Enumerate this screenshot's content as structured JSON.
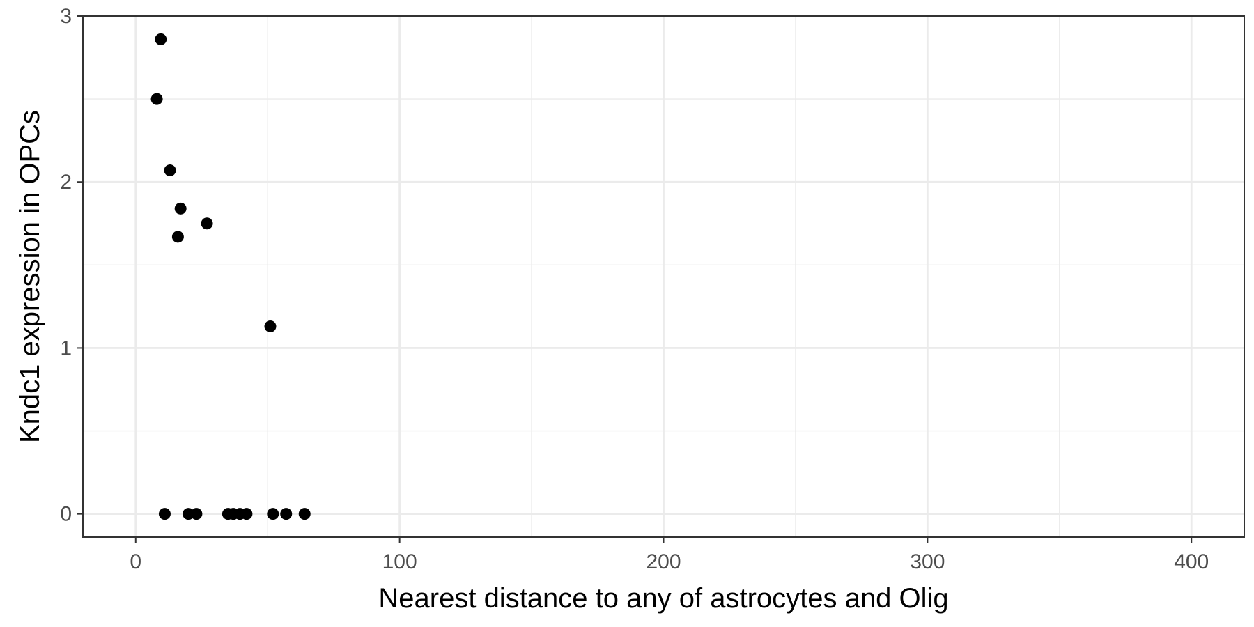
{
  "chart_data": {
    "type": "scatter",
    "title": "",
    "xlabel": "Nearest distance to any of astrocytes and Olig",
    "ylabel": "Kndc1 expression in OPCs",
    "xlim": [
      -20,
      420
    ],
    "ylim": [
      -0.14,
      3.0
    ],
    "x_ticks": [
      0,
      100,
      200,
      300,
      400
    ],
    "x_tick_labels": [
      "0",
      "100",
      "200",
      "300",
      "400"
    ],
    "y_ticks": [
      0,
      1,
      2,
      3
    ],
    "y_tick_labels": [
      "0",
      "1",
      "2",
      "3"
    ],
    "x_minor_gridlines": [
      50,
      150,
      250,
      350
    ],
    "y_minor_gridlines": [
      0.5,
      1.5,
      2.5
    ],
    "grid": true,
    "legend": "none",
    "series": [
      {
        "points": [
          {
            "x": 9.5,
            "y": 2.86
          },
          {
            "x": 8.0,
            "y": 2.5
          },
          {
            "x": 13.0,
            "y": 2.07
          },
          {
            "x": 17.0,
            "y": 1.84
          },
          {
            "x": 16.0,
            "y": 1.67
          },
          {
            "x": 27.0,
            "y": 1.75
          },
          {
            "x": 51.0,
            "y": 1.13
          },
          {
            "x": 11.0,
            "y": 0.0
          },
          {
            "x": 20.0,
            "y": 0.0
          },
          {
            "x": 23.0,
            "y": 0.0
          },
          {
            "x": 35.0,
            "y": 0.0
          },
          {
            "x": 37.0,
            "y": 0.0
          },
          {
            "x": 39.5,
            "y": 0.0
          },
          {
            "x": 42.0,
            "y": 0.0
          },
          {
            "x": 52.0,
            "y": 0.0
          },
          {
            "x": 57.0,
            "y": 0.0
          },
          {
            "x": 64.0,
            "y": 0.0
          }
        ]
      }
    ],
    "colors": {
      "background": "#ffffff",
      "panel_border": "#333333",
      "major_grid": "#ebebeb",
      "minor_grid": "#ebebeb",
      "point": "#000000",
      "tick": "#333333"
    }
  }
}
